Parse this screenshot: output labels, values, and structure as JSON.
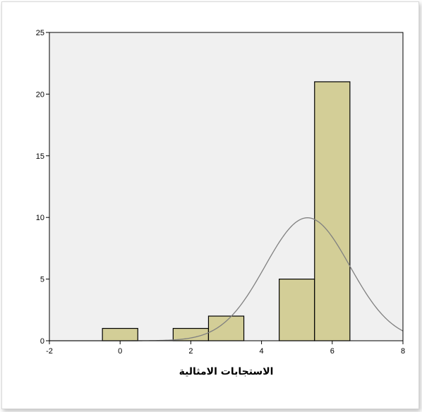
{
  "chart_data": {
    "type": "bar",
    "title": "",
    "xlabel": "الاستجابات الامثالية",
    "ylabel": "",
    "xlim": [
      -2,
      8
    ],
    "ylim": [
      0,
      25
    ],
    "x_ticks": [
      -2,
      0,
      2,
      4,
      6,
      8
    ],
    "y_ticks": [
      0,
      5,
      10,
      15,
      20,
      25
    ],
    "bin_width": 1,
    "bins": [
      {
        "center": 0,
        "count": 1
      },
      {
        "center": 2,
        "count": 1
      },
      {
        "center": 3,
        "count": 2
      },
      {
        "center": 5,
        "count": 5
      },
      {
        "center": 6,
        "count": 21
      }
    ],
    "normal_curve": {
      "mean": 5.3,
      "std": 1.2,
      "n": 30
    },
    "grid": false,
    "legend": "none",
    "colors": {
      "plot_background": "#f0f0f0",
      "bar_fill": "#d3ce97",
      "bar_stroke": "#000000",
      "curve": "#808080"
    }
  }
}
